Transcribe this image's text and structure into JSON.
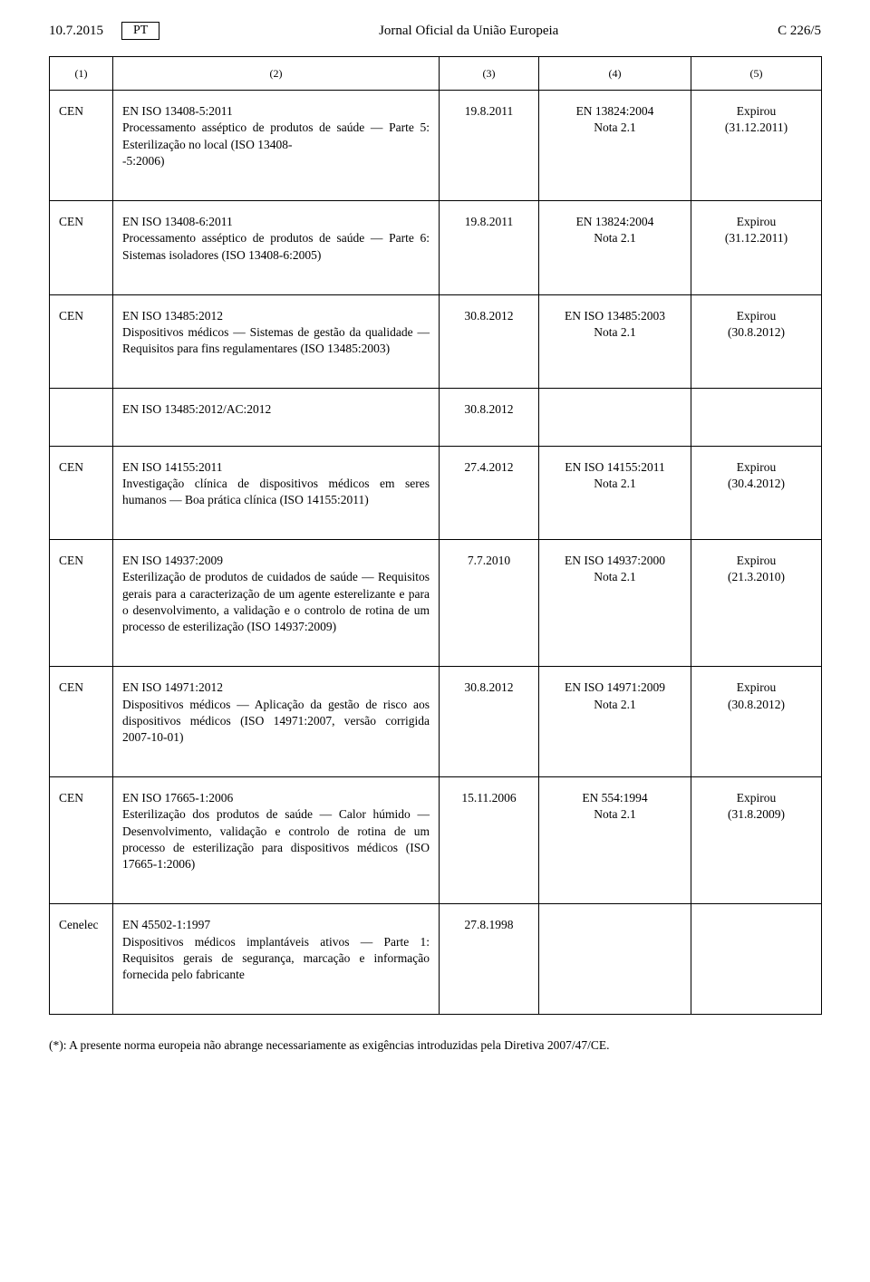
{
  "header": {
    "date": "10.7.2015",
    "lang": "PT",
    "journal": "Jornal Oficial da União Europeia",
    "pageref": "C 226/5"
  },
  "cols": [
    "(1)",
    "(2)",
    "(3)",
    "(4)",
    "(5)"
  ],
  "rows": [
    {
      "org": "CEN",
      "title": "EN ISO 13408-5:2011\nProcessamento asséptico de produtos de saúde — Parte 5: Esterilização no local (ISO 13408-\n-5:2006)",
      "date": "19.8.2011",
      "super": "EN 13824:2004\nNota 2.1",
      "exp": "Expirou\n(31.12.2011)"
    },
    {
      "org": "CEN",
      "title": "EN ISO 13408-6:2011\nProcessamento asséptico de produtos de saúde — Parte 6: Sistemas isoladores (ISO 13408-6:2005)",
      "date": "19.8.2011",
      "super": "EN 13824:2004\nNota 2.1",
      "exp": "Expirou\n(31.12.2011)"
    },
    {
      "org": "CEN",
      "title": "EN ISO 13485:2012\nDispositivos médicos — Sistemas de gestão da qualidade — Requisitos para fins regulamentares (ISO 13485:2003)",
      "date": "30.8.2012",
      "super": "EN ISO 13485:2003\nNota 2.1",
      "exp": "Expirou\n(30.8.2012)"
    },
    {
      "org": "",
      "title": "EN ISO 13485:2012/AC:2012",
      "date": "30.8.2012",
      "super": "",
      "exp": ""
    },
    {
      "org": "CEN",
      "title": "EN ISO 14155:2011\nInvestigação clínica de dispositivos médicos em seres humanos — Boa prática clínica (ISO 14155:2011)",
      "date": "27.4.2012",
      "super": "EN ISO 14155:2011\nNota 2.1",
      "exp": "Expirou\n(30.4.2012)"
    },
    {
      "org": "CEN",
      "title": "EN ISO 14937:2009\nEsterilização de produtos de cuidados de saúde — Requisitos gerais para a caracterização de um agente esterelizante e para o desenvolvimento, a validação e o controlo de rotina de um processo de esterilização (ISO 14937:2009)",
      "date": "7.7.2010",
      "super": "EN ISO 14937:2000\nNota 2.1",
      "exp": "Expirou\n(21.3.2010)"
    },
    {
      "org": "CEN",
      "title": "EN ISO 14971:2012\nDispositivos médicos — Aplicação da gestão de risco aos dispositivos médicos (ISO 14971:2007, versão corrigida 2007-10-01)",
      "date": "30.8.2012",
      "super": "EN ISO 14971:2009\nNota 2.1",
      "exp": "Expirou\n(30.8.2012)"
    },
    {
      "org": "CEN",
      "title": "EN ISO 17665-1:2006\nEsterilização dos produtos de saúde — Calor húmido — Desenvolvimento, validação e controlo de rotina de um processo de esterilização para dispositivos médicos (ISO 17665-1:2006)",
      "date": "15.11.2006",
      "super": "EN 554:1994\nNota 2.1",
      "exp": "Expirou\n(31.8.2009)"
    },
    {
      "org": "Cenelec",
      "title": "EN 45502-1:1997\nDispositivos médicos implantáveis ativos — Parte 1: Requisitos gerais de segurança, marcação e informação fornecida pelo fabricante",
      "date": "27.8.1998",
      "super": "",
      "exp": ""
    }
  ],
  "footnote": "(*): A presente norma europeia não abrange necessariamente as exigências introduzidas pela Diretiva 2007/47/CE."
}
